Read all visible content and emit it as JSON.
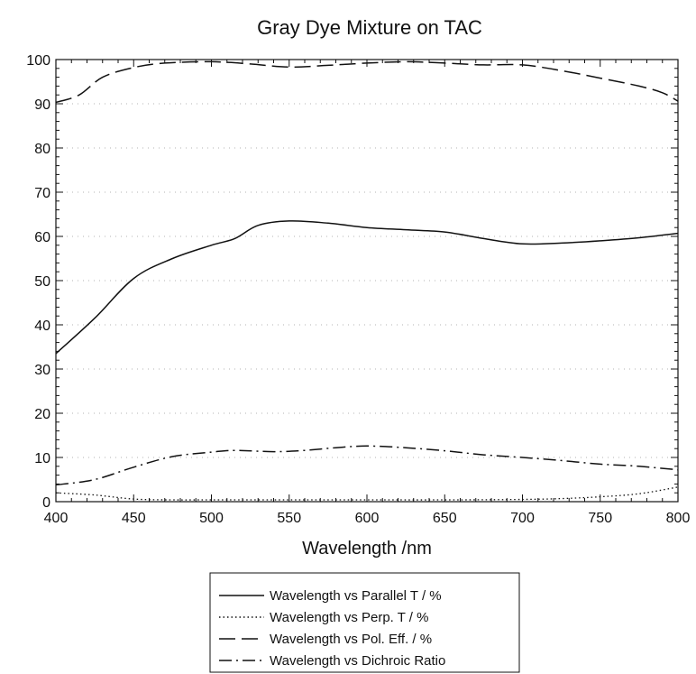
{
  "chart_data": {
    "type": "line",
    "title": "Gray Dye Mixture on TAC",
    "xlabel": "Wavelength /nm",
    "ylabel": "",
    "xlim": [
      400,
      800
    ],
    "ylim": [
      0,
      100
    ],
    "x_ticks": [
      400,
      450,
      500,
      550,
      600,
      650,
      700,
      750,
      800
    ],
    "y_ticks": [
      0,
      10,
      20,
      30,
      40,
      50,
      60,
      70,
      80,
      90,
      100
    ],
    "grid": "dotted horizontal",
    "legend_position": "bottom",
    "series": [
      {
        "name": "Wavelength vs Parallel T / %",
        "style": "solid",
        "x": [
          400,
          425,
          450,
          475,
          500,
          515,
          530,
          550,
          575,
          600,
          625,
          650,
          675,
          700,
          725,
          750,
          775,
          800
        ],
        "y": [
          33.5,
          41.5,
          50.5,
          55,
          58,
          59.5,
          62.5,
          63.5,
          63,
          62,
          61.5,
          61,
          59.5,
          58.3,
          58.5,
          59,
          59.7,
          60.7
        ]
      },
      {
        "name": "Wavelength vs Perp. T / %",
        "style": "dotted",
        "x": [
          400,
          425,
          450,
          475,
          500,
          550,
          600,
          650,
          700,
          725,
          750,
          775,
          800
        ],
        "y": [
          2,
          1.5,
          0.6,
          0.4,
          0.4,
          0.4,
          0.4,
          0.4,
          0.5,
          0.7,
          1.1,
          1.8,
          3.3
        ]
      },
      {
        "name": "Wavelength vs Pol. Eff. / %",
        "style": "dashed",
        "x": [
          400,
          415,
          430,
          450,
          470,
          500,
          525,
          550,
          575,
          600,
          625,
          650,
          675,
          700,
          725,
          750,
          775,
          790,
          800
        ],
        "y": [
          90.3,
          92,
          96,
          98.2,
          99.2,
          99.5,
          99,
          98.3,
          98.7,
          99.2,
          99.5,
          99.2,
          98.8,
          98.8,
          97.5,
          95.8,
          94,
          92.5,
          90.6
        ]
      },
      {
        "name": "Wavelength vs Dichroic Ratio",
        "style": "dashdot",
        "x": [
          400,
          425,
          450,
          475,
          500,
          515,
          540,
          560,
          580,
          600,
          625,
          650,
          675,
          700,
          725,
          750,
          775,
          800
        ],
        "y": [
          3.8,
          5,
          7.8,
          10.2,
          11.2,
          11.6,
          11.3,
          11.6,
          12.2,
          12.6,
          12.2,
          11.5,
          10.6,
          10,
          9.3,
          8.5,
          8,
          7.2
        ]
      }
    ]
  }
}
